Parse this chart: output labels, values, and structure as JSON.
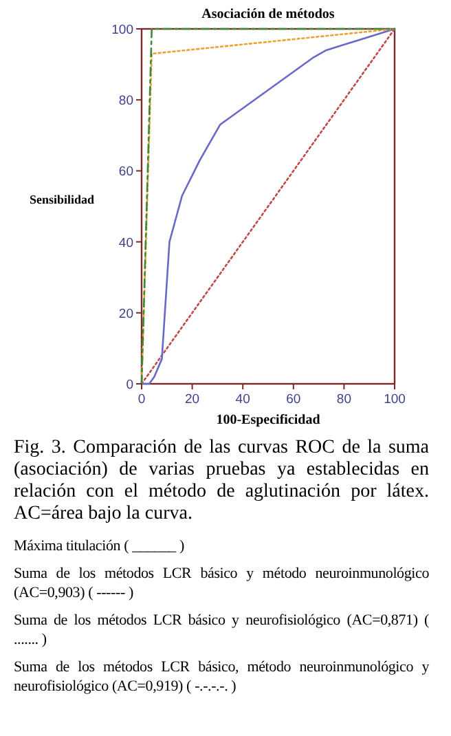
{
  "chart_data": {
    "type": "line",
    "title": "Asociación de métodos",
    "xlabel": "100-Especificidad",
    "ylabel": "Sensibilidad",
    "xlim": [
      0,
      100
    ],
    "ylim": [
      0,
      100
    ],
    "xticks": [
      0,
      20,
      40,
      60,
      80,
      100
    ],
    "yticks": [
      0,
      20,
      40,
      60,
      80,
      100
    ],
    "grid": false,
    "series": [
      {
        "color": "#c04848",
        "line_style": "dotted",
        "x": [
          0,
          100
        ],
        "values": [
          0,
          100
        ]
      },
      {
        "color": "#6868c8",
        "line_style": "solid",
        "x": [
          0,
          3,
          5,
          8,
          11,
          16,
          23,
          31,
          68,
          73,
          100
        ],
        "values": [
          0,
          0,
          2,
          7,
          40,
          53,
          63,
          73,
          92,
          94,
          100
        ]
      },
      {
        "color": "#f0a030",
        "line_style": "dotted",
        "x": [
          0,
          4,
          100
        ],
        "values": [
          0,
          93,
          100
        ]
      },
      {
        "color": "#3a8a3a",
        "line_style": "dashed",
        "x": [
          0,
          4,
          100
        ],
        "values": [
          0,
          100,
          100
        ]
      }
    ],
    "annotations": [
      "Fig. 3. Comparación de las curvas ROC de la suma (asociación) de varias pruebas ya establecidas en relación con el método de aglutinación por látex. AC=área bajo la curva.",
      "Máxima titulación ( ______ )",
      "Suma de los métodos LCR básico y método neuroinmunológico (AC=0,903)  ( ------ )",
      "Suma de los métodos LCR básico y neurofisiológico (AC=0,871)  ( ....... )",
      "Suma de los métodos LCR básico, método neuroinmunológico y neurofisiológico  (AC=0,919)  ( -.-.-.-. )"
    ]
  }
}
